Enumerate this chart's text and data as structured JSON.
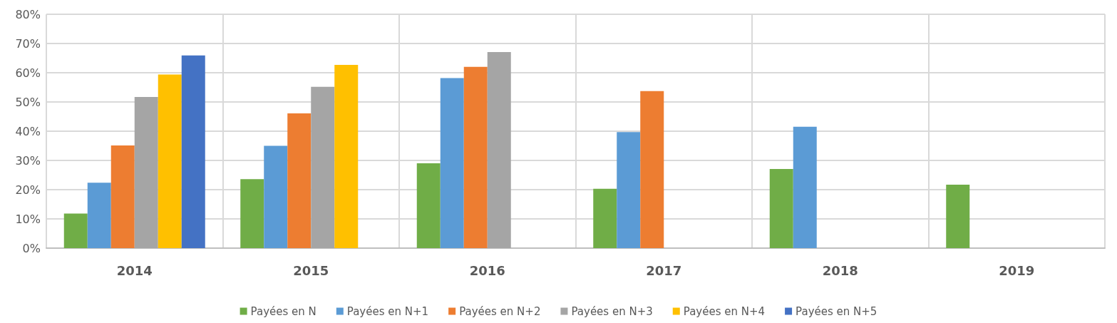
{
  "chart_data": {
    "type": "bar",
    "categories": [
      "2014",
      "2015",
      "2016",
      "2017",
      "2018",
      "2019"
    ],
    "series": [
      {
        "name": "Payées en N",
        "color": "#70ad47",
        "values": [
          11.8,
          23.6,
          29.0,
          20.3,
          27.1,
          21.7
        ]
      },
      {
        "name": "Payées en N+1",
        "color": "#5b9bd5",
        "values": [
          22.4,
          35.0,
          58.2,
          39.7,
          41.5,
          null
        ]
      },
      {
        "name": "Payées en N+2",
        "color": "#ed7d31",
        "values": [
          35.1,
          46.1,
          62.0,
          53.7,
          null,
          null
        ]
      },
      {
        "name": "Payées en N+3",
        "color": "#a5a5a5",
        "values": [
          51.7,
          55.2,
          67.1,
          null,
          null,
          null
        ]
      },
      {
        "name": "Payées en N+4",
        "color": "#ffc000",
        "values": [
          59.4,
          62.7,
          null,
          null,
          null,
          null
        ]
      },
      {
        "name": "Payées en N+5",
        "color": "#4472c4",
        "values": [
          65.9,
          null,
          null,
          null,
          null,
          null
        ]
      }
    ],
    "ylim": [
      0,
      80
    ],
    "yticks": [
      {
        "value": 0,
        "label": "0%"
      },
      {
        "value": 10,
        "label": "10%"
      },
      {
        "value": 20,
        "label": "20%"
      },
      {
        "value": 30,
        "label": "30%"
      },
      {
        "value": 40,
        "label": "40%"
      },
      {
        "value": 50,
        "label": "50%"
      },
      {
        "value": 60,
        "label": "60%"
      },
      {
        "value": 70,
        "label": "70%"
      },
      {
        "value": 80,
        "label": "80%"
      }
    ],
    "grid": true,
    "legend": "bottom"
  }
}
